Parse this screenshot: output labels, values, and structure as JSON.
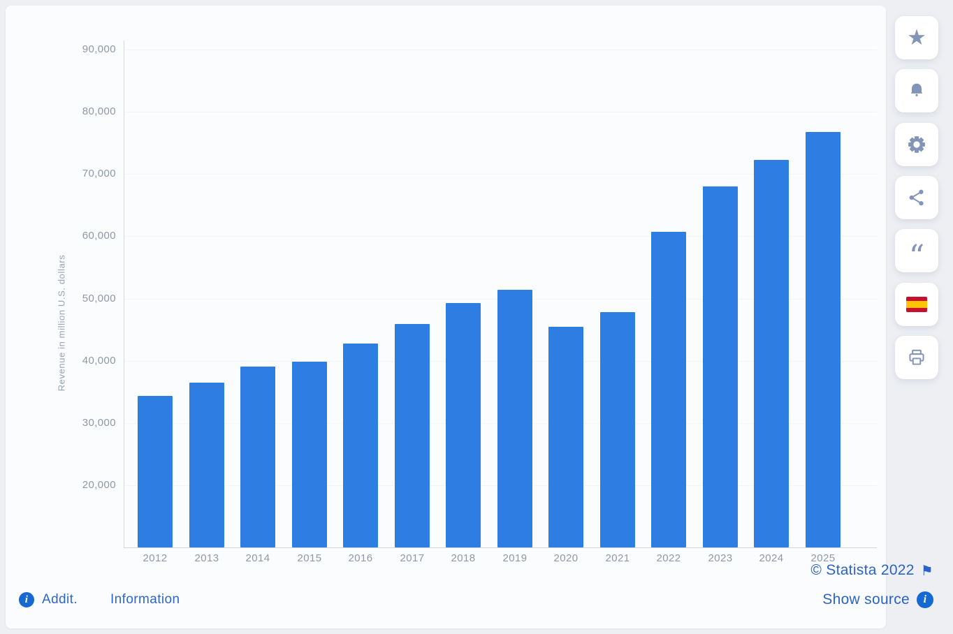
{
  "chart_data": {
    "type": "bar",
    "title": "",
    "categories": [
      "2012",
      "2013",
      "2014",
      "2015",
      "2016",
      "2017",
      "2018",
      "2019",
      "2020",
      "2021",
      "2022",
      "2023",
      "2024",
      "2025"
    ],
    "values": [
      34300,
      36500,
      39100,
      39800,
      42800,
      45900,
      49300,
      51400,
      45400,
      47800,
      60700,
      68000,
      72300,
      76800
    ],
    "xlabel": "",
    "ylabel": "Revenue in million U.S. dollars",
    "ylim": [
      10000,
      90000
    ],
    "yticks": [
      {
        "value": 20000,
        "label": "20,000"
      },
      {
        "value": 30000,
        "label": "30,000"
      },
      {
        "value": 40000,
        "label": "40,000"
      },
      {
        "value": 50000,
        "label": "50,000"
      },
      {
        "value": 60000,
        "label": "60,000"
      },
      {
        "value": 70000,
        "label": "70,000"
      },
      {
        "value": 80000,
        "label": "80,000"
      },
      {
        "value": 90000,
        "label": "90,000"
      }
    ],
    "grid": "faint-horizontal",
    "legend": "none",
    "bar_color": "#2e7de2"
  },
  "footer": {
    "additional_info_prefix": "Addit.",
    "additional_info_label": "Information",
    "copyright": "© Statista 2022",
    "show_source": "Show source",
    "info_icon_glyph": "i",
    "flag_icon_glyph": "⚑"
  },
  "sidebar": {
    "buttons": [
      {
        "name": "favorite-button",
        "icon": "star-icon"
      },
      {
        "name": "alert-button",
        "icon": "bell-icon"
      },
      {
        "name": "settings-button",
        "icon": "gear-icon"
      },
      {
        "name": "share-button",
        "icon": "share-icon"
      },
      {
        "name": "cite-button",
        "icon": "quote-icon"
      },
      {
        "name": "language-button",
        "icon": "spain-flag-icon"
      },
      {
        "name": "print-button",
        "icon": "printer-icon"
      }
    ]
  },
  "colors": {
    "bar": "#2e7de2",
    "link_blue": "#2c66cc",
    "copyright_blue": "#2b62c9",
    "icon_gray": "#8294b8",
    "spain_red": "#c8102e",
    "spain_yellow": "#ffc400"
  }
}
